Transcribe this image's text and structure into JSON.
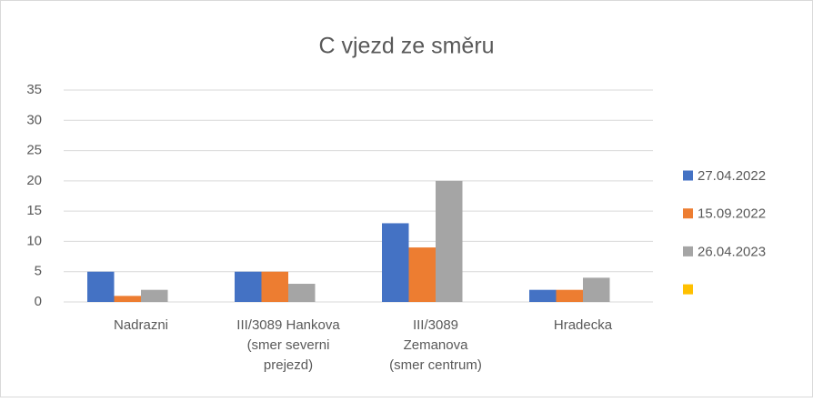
{
  "chart_data": {
    "type": "bar",
    "title": "C vjezd ze směru",
    "categories": [
      "Nadrazni",
      "III/3089 Hankova\n(smer severni\nprejezd)",
      "III/3089\nZemanova\n(smer centrum)",
      "Hradecka"
    ],
    "series": [
      {
        "name": "27.04.2022",
        "color": "#4472c4",
        "values": [
          5,
          5,
          13,
          2
        ]
      },
      {
        "name": "15.09.2022",
        "color": "#ed7d31",
        "values": [
          1,
          5,
          9,
          2
        ]
      },
      {
        "name": "26.04.2023",
        "color": "#a5a5a5",
        "values": [
          2,
          3,
          20,
          4
        ]
      },
      {
        "name": null,
        "color": "#ffc000",
        "values": [
          null,
          null,
          null,
          null
        ]
      }
    ],
    "ylim": [
      0,
      35
    ],
    "yticks": [
      0,
      5,
      10,
      15,
      20,
      25,
      30,
      35
    ],
    "grid": true,
    "legend": "right"
  }
}
